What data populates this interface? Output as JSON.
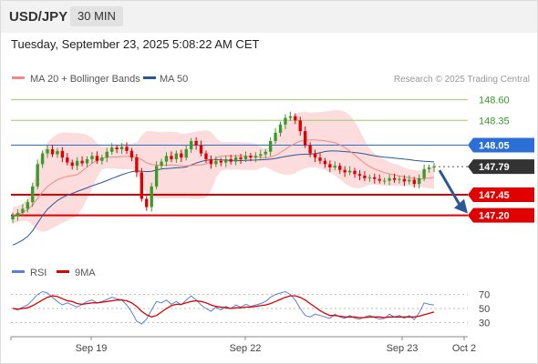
{
  "header": {
    "symbol": "USD/JPY",
    "timeframe": "30 MIN"
  },
  "datetime": "Tuesday, September 23, 2025 5:08:22 AM CET",
  "credit": "Research © 2025 Trading Central",
  "legend": {
    "ma20": {
      "label": "MA 20 + Bollinger Bands",
      "color": "#f08a84"
    },
    "ma50": {
      "label": "MA 50",
      "color": "#2b5797"
    }
  },
  "rsi_legend": {
    "rsi": {
      "label": "RSI",
      "color": "#5b7fd6"
    },
    "ma9": {
      "label": "9MA",
      "color": "#e00000"
    }
  },
  "colors": {
    "up": "#3a9a2a",
    "down": "#e00000",
    "pivot": "#2b6fd6",
    "arrow": "#2b5797",
    "band": "#fbd6d6"
  },
  "chart_data": {
    "type": "candlestick",
    "price_range": [
      146.7,
      148.75
    ],
    "levels": [
      {
        "value": 148.6,
        "label": "148.60",
        "kind": "resistance2",
        "color": "#9ccc6e"
      },
      {
        "value": 148.35,
        "label": "148.35",
        "kind": "resistance1",
        "color": "#9ccc6e"
      },
      {
        "value": 148.05,
        "label": "148.05",
        "kind": "pivot",
        "color": "#2b6fd6"
      },
      {
        "value": 147.79,
        "label": "147.79",
        "kind": "last",
        "color": "#333333"
      },
      {
        "value": 147.45,
        "label": "147.45",
        "kind": "support1",
        "color": "#e00000"
      },
      {
        "value": 147.2,
        "label": "147.20",
        "kind": "support2",
        "color": "#e00000"
      }
    ],
    "x_ticks": [
      "Sep 19",
      "Sep 22",
      "Sep 23",
      "Oct 2"
    ],
    "close": [
      147.2,
      147.23,
      147.28,
      147.36,
      147.55,
      147.82,
      147.95,
      148.0,
      147.94,
      147.98,
      147.9,
      147.84,
      147.8,
      147.86,
      147.83,
      147.88,
      147.92,
      147.86,
      147.9,
      147.97,
      148.02,
      148.0,
      148.03,
      147.98,
      147.9,
      147.72,
      147.4,
      147.3,
      147.55,
      147.8,
      147.85,
      147.92,
      147.88,
      147.95,
      147.9,
      148.0,
      148.1,
      148.05,
      147.95,
      147.88,
      147.82,
      147.86,
      147.84,
      147.88,
      147.85,
      147.9,
      147.88,
      147.92,
      147.9,
      147.92,
      147.94,
      147.97,
      148.1,
      148.2,
      148.3,
      148.38,
      148.4,
      148.35,
      148.22,
      148.05,
      147.95,
      147.9,
      147.86,
      147.82,
      147.78,
      147.8,
      147.75,
      147.72,
      147.74,
      147.7,
      147.68,
      147.65,
      147.66,
      147.64,
      147.62,
      147.62,
      147.65,
      147.63,
      147.64,
      147.61,
      147.63,
      147.58,
      147.65,
      147.76,
      147.78,
      147.79
    ],
    "open_offset": [
      -0.05,
      -0.04,
      -0.05,
      -0.08,
      -0.19,
      -0.27,
      -0.13,
      -0.05,
      0.06,
      -0.04,
      0.08,
      0.06,
      0.04,
      -0.06,
      0.03,
      -0.05,
      -0.04,
      0.06,
      -0.04,
      -0.07,
      -0.05,
      0.02,
      -0.03,
      0.05,
      0.08,
      0.18,
      0.32,
      0.1,
      -0.25,
      -0.25,
      -0.05,
      -0.07,
      0.04,
      -0.07,
      0.05,
      -0.1,
      -0.1,
      0.05,
      0.1,
      0.07,
      0.06,
      -0.04,
      0.02,
      -0.04,
      0.03,
      -0.05,
      0.02,
      -0.04,
      0.02,
      -0.02,
      -0.02,
      -0.03,
      -0.13,
      -0.1,
      -0.1,
      -0.08,
      -0.02,
      0.05,
      0.13,
      0.17,
      0.1,
      0.05,
      0.04,
      0.04,
      0.04,
      -0.02,
      0.05,
      0.03,
      -0.02,
      0.04,
      0.02,
      0.03,
      -0.01,
      0.02,
      0.02,
      0.0,
      -0.03,
      0.02,
      -0.01,
      0.03,
      -0.02,
      0.05,
      -0.07,
      -0.11,
      -0.02,
      -0.01
    ],
    "rsi": {
      "ticks": [
        70,
        50,
        30
      ],
      "range": [
        15,
        85
      ],
      "values": [
        50,
        48,
        52,
        55,
        62,
        70,
        74,
        72,
        66,
        60,
        55,
        58,
        55,
        52,
        56,
        60,
        62,
        58,
        60,
        63,
        66,
        64,
        62,
        55,
        45,
        32,
        28,
        35,
        48,
        60,
        58,
        62,
        56,
        60,
        55,
        62,
        68,
        62,
        55,
        50,
        46,
        52,
        48,
        53,
        50,
        55,
        52,
        56,
        53,
        55,
        57,
        60,
        66,
        70,
        72,
        74,
        70,
        62,
        50,
        40,
        38,
        42,
        40,
        38,
        36,
        42,
        38,
        36,
        40,
        36,
        35,
        38,
        40,
        37,
        35,
        36,
        42,
        38,
        40,
        36,
        40,
        34,
        44,
        58,
        56,
        55
      ],
      "ma9": [
        50,
        49,
        50,
        51,
        54,
        58,
        62,
        66,
        68,
        67,
        64,
        61,
        60,
        57,
        56,
        57,
        58,
        58,
        59,
        60,
        61,
        62,
        62,
        61,
        58,
        53,
        46,
        41,
        38,
        40,
        45,
        50,
        54,
        56,
        56,
        58,
        60,
        61,
        60,
        58,
        55,
        53,
        52,
        51,
        50,
        51,
        51,
        52,
        52,
        53,
        54,
        55,
        57,
        60,
        63,
        66,
        68,
        68,
        66,
        62,
        57,
        52,
        47,
        43,
        40,
        40,
        39,
        38,
        38,
        38,
        37,
        37,
        38,
        38,
        38,
        37,
        38,
        38,
        38,
        38,
        38,
        38,
        39,
        41,
        43,
        45
      ]
    }
  }
}
